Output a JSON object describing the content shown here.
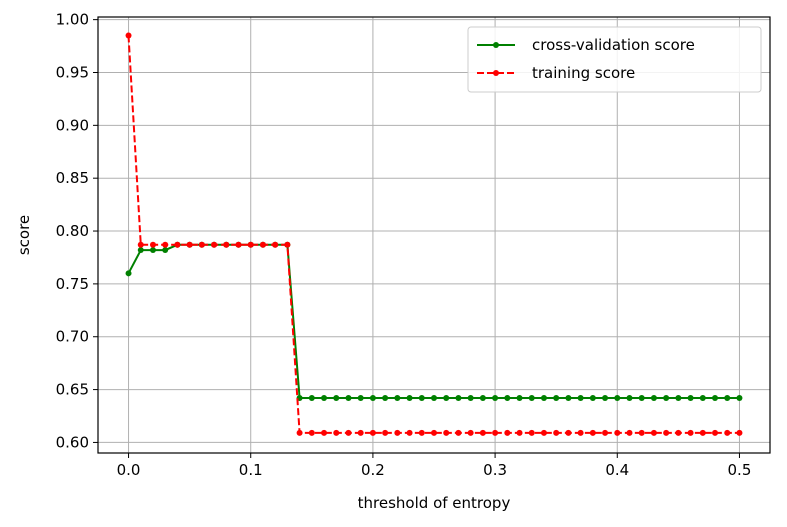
{
  "chart_data": {
    "type": "line",
    "xlabel": "threshold of entropy",
    "ylabel": "score",
    "xlim": [
      -0.025,
      0.525
    ],
    "ylim": [
      0.59,
      1.0025
    ],
    "xticks": [
      0.0,
      0.1,
      0.2,
      0.3,
      0.4,
      0.5
    ],
    "xtick_labels": [
      "0.0",
      "0.1",
      "0.2",
      "0.3",
      "0.4",
      "0.5"
    ],
    "yticks": [
      0.6,
      0.65,
      0.7,
      0.75,
      0.8,
      0.85,
      0.9,
      0.95,
      1.0
    ],
    "ytick_labels": [
      "0.60",
      "0.65",
      "0.70",
      "0.75",
      "0.80",
      "0.85",
      "0.90",
      "0.95",
      "1.00"
    ],
    "grid": true,
    "legend_position": "top-right",
    "x": [
      0.0,
      0.01,
      0.02,
      0.03,
      0.04,
      0.05,
      0.06,
      0.07,
      0.08,
      0.09,
      0.1,
      0.11,
      0.12,
      0.13,
      0.14,
      0.15,
      0.16,
      0.17,
      0.18,
      0.19,
      0.2,
      0.21,
      0.22,
      0.23,
      0.24,
      0.25,
      0.26,
      0.27,
      0.28,
      0.29,
      0.3,
      0.31,
      0.32,
      0.33,
      0.34,
      0.35,
      0.36,
      0.37,
      0.38,
      0.39,
      0.4,
      0.41,
      0.42,
      0.43,
      0.44,
      0.45,
      0.46,
      0.47,
      0.48,
      0.49,
      0.5
    ],
    "series": [
      {
        "name": "cross-validation score",
        "color": "#008000",
        "line_style": "solid",
        "values": [
          0.76,
          0.782,
          0.782,
          0.782,
          0.787,
          0.787,
          0.787,
          0.787,
          0.787,
          0.787,
          0.787,
          0.787,
          0.787,
          0.787,
          0.642,
          0.642,
          0.642,
          0.642,
          0.642,
          0.642,
          0.642,
          0.642,
          0.642,
          0.642,
          0.642,
          0.642,
          0.642,
          0.642,
          0.642,
          0.642,
          0.642,
          0.642,
          0.642,
          0.642,
          0.642,
          0.642,
          0.642,
          0.642,
          0.642,
          0.642,
          0.642,
          0.642,
          0.642,
          0.642,
          0.642,
          0.642,
          0.642,
          0.642,
          0.642,
          0.642,
          0.642
        ]
      },
      {
        "name": "training score",
        "color": "#ff0000",
        "line_style": "dashed",
        "values": [
          0.985,
          0.787,
          0.787,
          0.787,
          0.787,
          0.787,
          0.787,
          0.787,
          0.787,
          0.787,
          0.787,
          0.787,
          0.787,
          0.787,
          0.609,
          0.609,
          0.609,
          0.609,
          0.609,
          0.609,
          0.609,
          0.609,
          0.609,
          0.609,
          0.609,
          0.609,
          0.609,
          0.609,
          0.609,
          0.609,
          0.609,
          0.609,
          0.609,
          0.609,
          0.609,
          0.609,
          0.609,
          0.609,
          0.609,
          0.609,
          0.609,
          0.609,
          0.609,
          0.609,
          0.609,
          0.609,
          0.609,
          0.609,
          0.609,
          0.609,
          0.609
        ]
      }
    ]
  }
}
